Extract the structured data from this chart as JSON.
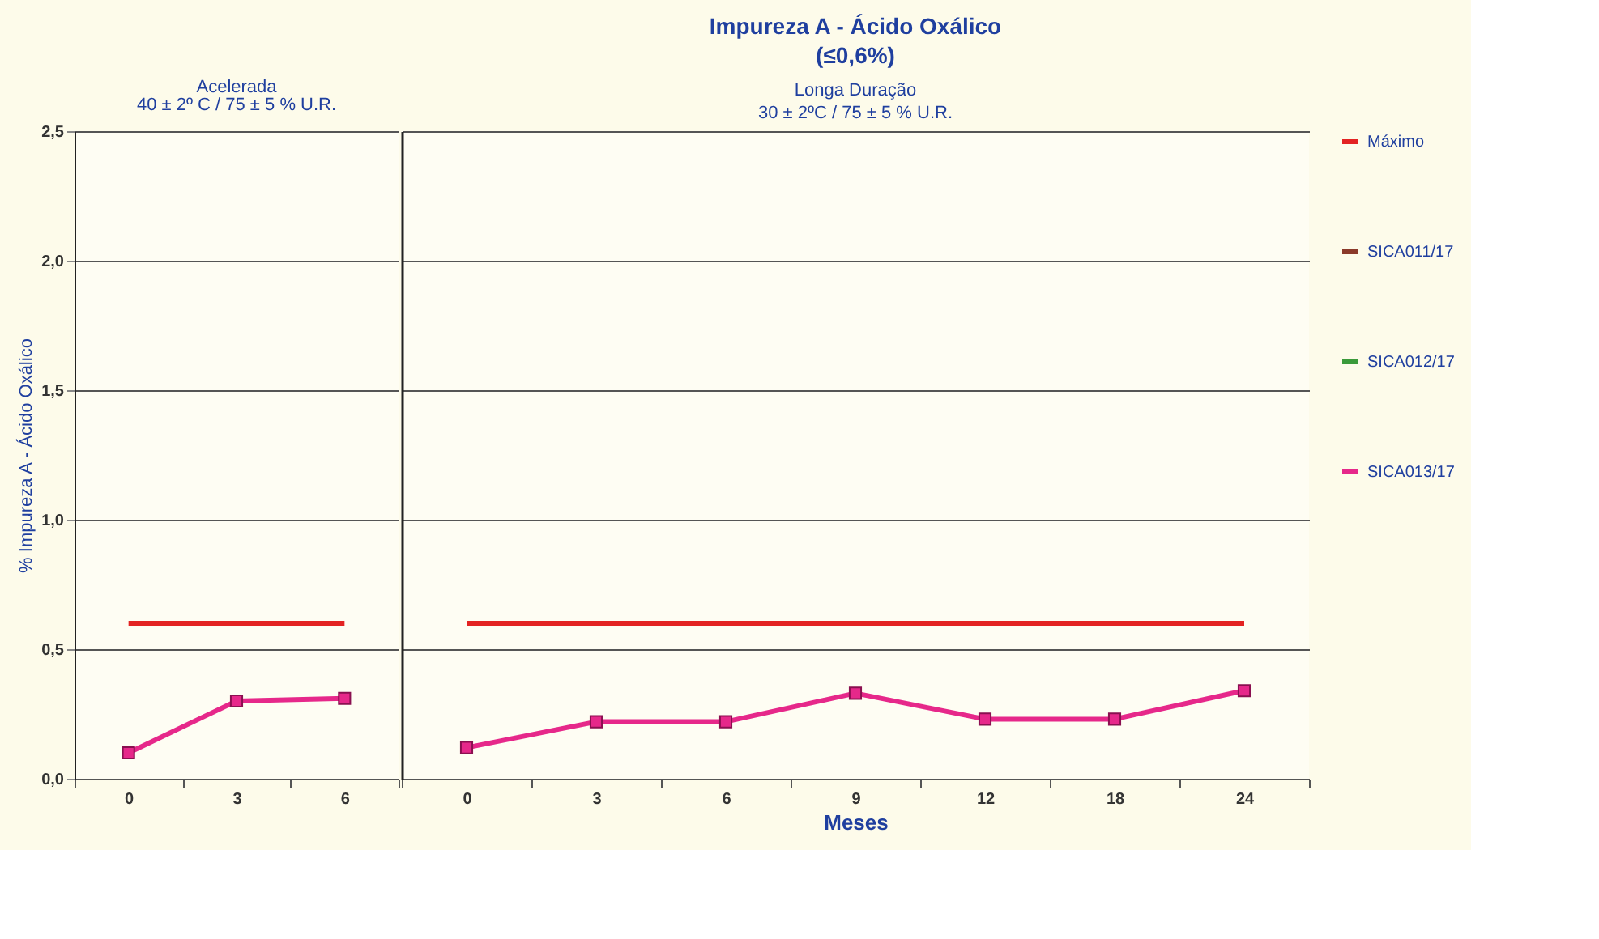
{
  "chart_data": [
    {
      "type": "line",
      "annotations": [
        "Acelerada",
        "40 ± 2º C / 75 ± 5 % U.R."
      ],
      "ylabel": "% Impureza A - Ácido Oxálico",
      "categories": [
        "0",
        "3",
        "6"
      ],
      "ylim": [
        0,
        2.5
      ],
      "yticks": [
        {
          "value": 0,
          "label": "0,0"
        },
        {
          "value": 0.5,
          "label": "0,5"
        },
        {
          "value": 1,
          "label": "1,0"
        },
        {
          "value": 1.5,
          "label": "1,5"
        },
        {
          "value": 2,
          "label": "2,0"
        },
        {
          "value": 2.5,
          "label": "2,5"
        }
      ],
      "grid": "y",
      "legend": "right",
      "series": [
        {
          "name": "Máximo",
          "color": "#e32322",
          "marker": "none",
          "values": [
            0.6,
            0.6,
            0.6
          ]
        },
        {
          "name": "SICA011/17",
          "color": "#8b3a2a",
          "marker": "square",
          "values": [
            null,
            null,
            null
          ]
        },
        {
          "name": "SICA012/17",
          "color": "#3a9a3a",
          "marker": "triangle",
          "values": [
            null,
            null,
            null
          ]
        },
        {
          "name": "SICA013/17",
          "color": "#e6288a",
          "marker": "square",
          "values": [
            0.1,
            0.3,
            0.31
          ]
        }
      ]
    },
    {
      "type": "line",
      "title": "Impureza A - Ácido Oxálico",
      "subtitle": "(≤0,6%)",
      "annotations": [
        "Longa Duração",
        "30 ± 2ºC / 75 ± 5 % U.R."
      ],
      "xlabel": "Meses",
      "categories": [
        "0",
        "3",
        "6",
        "9",
        "12",
        "18",
        "24"
      ],
      "ylim": [
        0,
        2.5
      ],
      "yticks": [
        0,
        0.5,
        1,
        1.5,
        2,
        2.5
      ],
      "grid": "y",
      "legend": "right",
      "tick_labels": "x",
      "series": [
        {
          "name": "Máximo",
          "color": "#e32322",
          "marker": "none",
          "values": [
            0.6,
            0.6,
            0.6,
            0.6,
            0.6,
            0.6,
            0.6
          ]
        },
        {
          "name": "SICA013/17",
          "color": "#e6288a",
          "marker": "square",
          "values": [
            0.12,
            0.22,
            0.22,
            0.33,
            0.23,
            0.23,
            0.34
          ]
        }
      ]
    }
  ]
}
